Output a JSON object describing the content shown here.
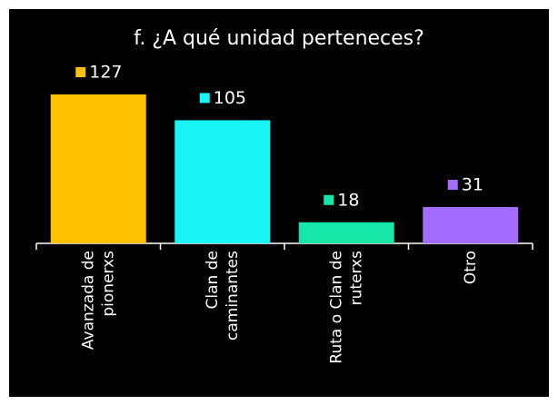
{
  "chart_data": {
    "type": "bar",
    "title": "f. ¿A qué unidad perteneces?",
    "categories": [
      [
        "Avanzada de",
        "pionerxs"
      ],
      [
        "Clan de",
        "caminantes"
      ],
      [
        "Ruta o Clan de",
        "ruterxs"
      ],
      [
        "Otro"
      ]
    ],
    "values": [
      127,
      105,
      18,
      31
    ],
    "colors": [
      "#ffc000",
      "#19f5f5",
      "#16e6a6",
      "#a36bff"
    ]
  }
}
